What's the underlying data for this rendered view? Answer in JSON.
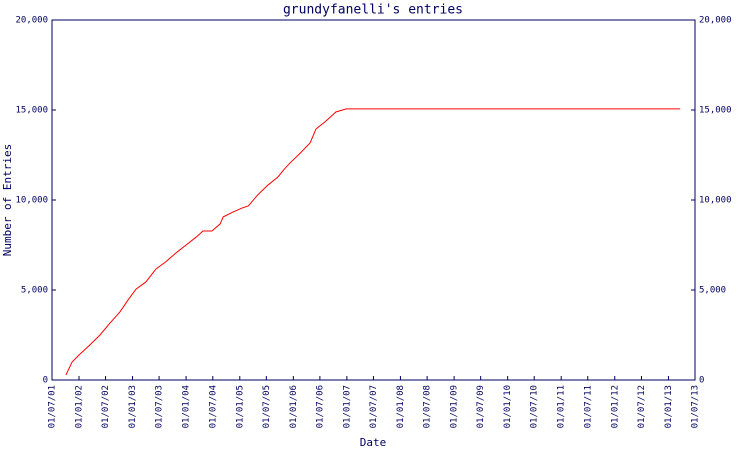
{
  "chart_data": {
    "type": "line",
    "title": "grundyfanelli's entries",
    "x_label": "Date",
    "y_label": "Number of Entries",
    "xlim": [
      "2001-07-01",
      "2013-07-01"
    ],
    "xticks": [
      {
        "value": "2001-07-01",
        "label": "01/07/01"
      },
      {
        "value": "2002-01-01",
        "label": "01/01/02"
      },
      {
        "value": "2002-07-01",
        "label": "01/07/02"
      },
      {
        "value": "2003-01-01",
        "label": "01/01/03"
      },
      {
        "value": "2003-07-01",
        "label": "01/07/03"
      },
      {
        "value": "2004-01-01",
        "label": "01/01/04"
      },
      {
        "value": "2004-07-01",
        "label": "01/07/04"
      },
      {
        "value": "2005-01-01",
        "label": "01/01/05"
      },
      {
        "value": "2005-07-01",
        "label": "01/07/05"
      },
      {
        "value": "2006-01-01",
        "label": "01/01/06"
      },
      {
        "value": "2006-07-01",
        "label": "01/07/06"
      },
      {
        "value": "2007-01-01",
        "label": "01/01/07"
      },
      {
        "value": "2007-07-01",
        "label": "01/07/07"
      },
      {
        "value": "2008-01-01",
        "label": "01/01/08"
      },
      {
        "value": "2008-07-01",
        "label": "01/07/08"
      },
      {
        "value": "2009-01-01",
        "label": "01/01/09"
      },
      {
        "value": "2009-07-01",
        "label": "01/07/09"
      },
      {
        "value": "2010-01-01",
        "label": "01/01/10"
      },
      {
        "value": "2010-07-01",
        "label": "01/07/10"
      },
      {
        "value": "2011-01-01",
        "label": "01/01/11"
      },
      {
        "value": "2011-07-01",
        "label": "01/07/11"
      },
      {
        "value": "2012-01-01",
        "label": "01/01/12"
      },
      {
        "value": "2012-07-01",
        "label": "01/07/12"
      },
      {
        "value": "2013-01-01",
        "label": "01/01/13"
      },
      {
        "value": "2013-07-01",
        "label": "01/07/13"
      }
    ],
    "ylim": [
      0,
      20000
    ],
    "yticks": [
      0,
      {
        "value": 5000,
        "label": "5,000"
      },
      {
        "value": 10000,
        "label": "10,000"
      },
      {
        "value": 15000,
        "label": "15,000"
      },
      {
        "value": 20000,
        "label": "20,000"
      }
    ],
    "y2lim": [
      0,
      20000
    ],
    "y2ticks": [
      0,
      {
        "value": 5000,
        "label": "5,000"
      },
      {
        "value": 10000,
        "label": "10,000"
      },
      {
        "value": 15000,
        "label": "15,000"
      },
      {
        "value": 20000,
        "label": "20,000"
      }
    ],
    "x": [
      "2001-10-04",
      "2001-11-15",
      "2002-01-01",
      "2002-03-15",
      "2002-05-24",
      "2002-08-01",
      "2002-10-07",
      "2002-12-01",
      "2003-01-25",
      "2003-04-01",
      "2003-06-10",
      "2003-08-15",
      "2003-10-24",
      "2004-01-01",
      "2004-03-10",
      "2004-04-25",
      "2004-06-25",
      "2004-08-20",
      "2004-09-10",
      "2004-11-15",
      "2005-01-18",
      "2005-02-28",
      "2005-05-03",
      "2005-07-12",
      "2005-09-18",
      "2005-11-01",
      "2005-12-10",
      "2006-02-18",
      "2006-04-25",
      "2006-06-05",
      "2006-08-12",
      "2006-10-18",
      "2006-12-28",
      "2013-03-22"
    ],
    "series": [
      {
        "name": "entries",
        "color": "#ff0000",
        "values": [
          280,
          1000,
          1390,
          1940,
          2500,
          3170,
          3780,
          4440,
          5050,
          5440,
          6170,
          6560,
          7060,
          7500,
          7940,
          8280,
          8280,
          8670,
          9060,
          9330,
          9560,
          9670,
          10280,
          10830,
          11280,
          11720,
          12060,
          12610,
          13170,
          13950,
          14390,
          14890,
          15060,
          15060
        ]
      }
    ]
  }
}
